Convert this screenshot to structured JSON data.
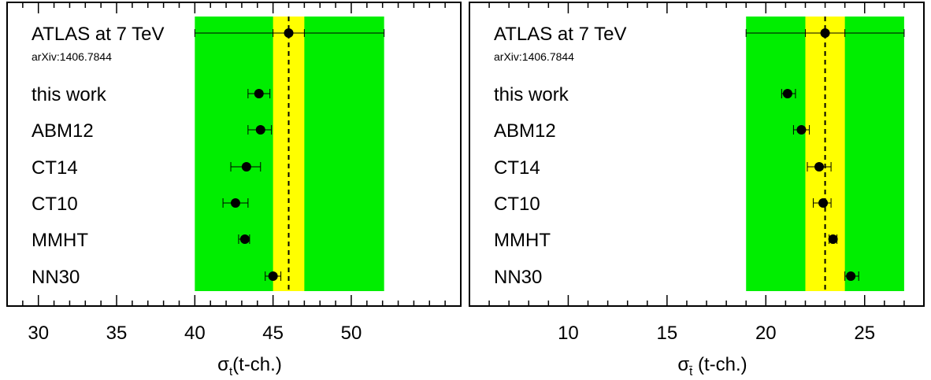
{
  "chart_data": [
    {
      "type": "scatter",
      "xlabel_symbol": "σ",
      "xlabel_sub": "t",
      "xlabel_text": "(t-ch.)",
      "xlim": [
        28,
        57
      ],
      "xticks": [
        30,
        35,
        40,
        45,
        50
      ],
      "tick_labels": [
        "30",
        "35",
        "40",
        "45",
        "50"
      ],
      "minor_step": 1,
      "bands": [
        {
          "name": "green-band",
          "x0": 40,
          "x1": 52.1,
          "color": "#00ee00"
        },
        {
          "name": "yellow-band",
          "x0": 45,
          "x1": 47,
          "color": "#ffff00"
        }
      ],
      "reference_line": 46,
      "measurement": {
        "label": "ATLAS at 7 TeV",
        "sublabel": "arXiv:1406.7844",
        "value": 46.0,
        "inner_err": [
          45.0,
          47.0
        ],
        "outer_err": [
          40.0,
          52.1
        ]
      },
      "predictions": [
        {
          "label": "this work",
          "value": 44.1,
          "err": [
            43.4,
            44.8
          ]
        },
        {
          "label": "ABM12",
          "value": 44.2,
          "err": [
            43.4,
            44.9
          ]
        },
        {
          "label": "CT14",
          "value": 43.3,
          "err": [
            42.3,
            44.2
          ]
        },
        {
          "label": "CT10",
          "value": 42.6,
          "err": [
            41.8,
            43.4
          ]
        },
        {
          "label": "MMHT",
          "value": 43.2,
          "err": [
            42.8,
            43.5
          ]
        },
        {
          "label": "NN30",
          "value": 45.0,
          "err": [
            44.5,
            45.5
          ]
        }
      ]
    },
    {
      "type": "scatter",
      "xlabel_symbol": "σ",
      "xlabel_sub": "t̄",
      "xlabel_text": " (t-ch.)",
      "xlim": [
        5,
        28
      ],
      "xticks": [
        10,
        15,
        20,
        25
      ],
      "tick_labels": [
        "10",
        "15",
        "20",
        "25"
      ],
      "minor_step": 1,
      "bands": [
        {
          "name": "green-band",
          "x0": 19,
          "x1": 27,
          "color": "#00ee00"
        },
        {
          "name": "yellow-band",
          "x0": 22,
          "x1": 24,
          "color": "#ffff00"
        }
      ],
      "reference_line": 23,
      "measurement": {
        "label": "ATLAS at 7 TeV",
        "sublabel": "arXiv:1406.7844",
        "value": 23.0,
        "inner_err": [
          22.0,
          24.0
        ],
        "outer_err": [
          19.0,
          27.0
        ]
      },
      "predictions": [
        {
          "label": "this work",
          "value": 21.1,
          "err": [
            20.8,
            21.5
          ]
        },
        {
          "label": "ABM12",
          "value": 21.8,
          "err": [
            21.4,
            22.2
          ]
        },
        {
          "label": "CT14",
          "value": 22.7,
          "err": [
            22.1,
            23.3
          ]
        },
        {
          "label": "CT10",
          "value": 22.9,
          "err": [
            22.4,
            23.3
          ]
        },
        {
          "label": "MMHT",
          "value": 23.4,
          "err": [
            23.2,
            23.6
          ]
        },
        {
          "label": "NN30",
          "value": 24.3,
          "err": [
            24.0,
            24.7
          ]
        }
      ]
    }
  ]
}
